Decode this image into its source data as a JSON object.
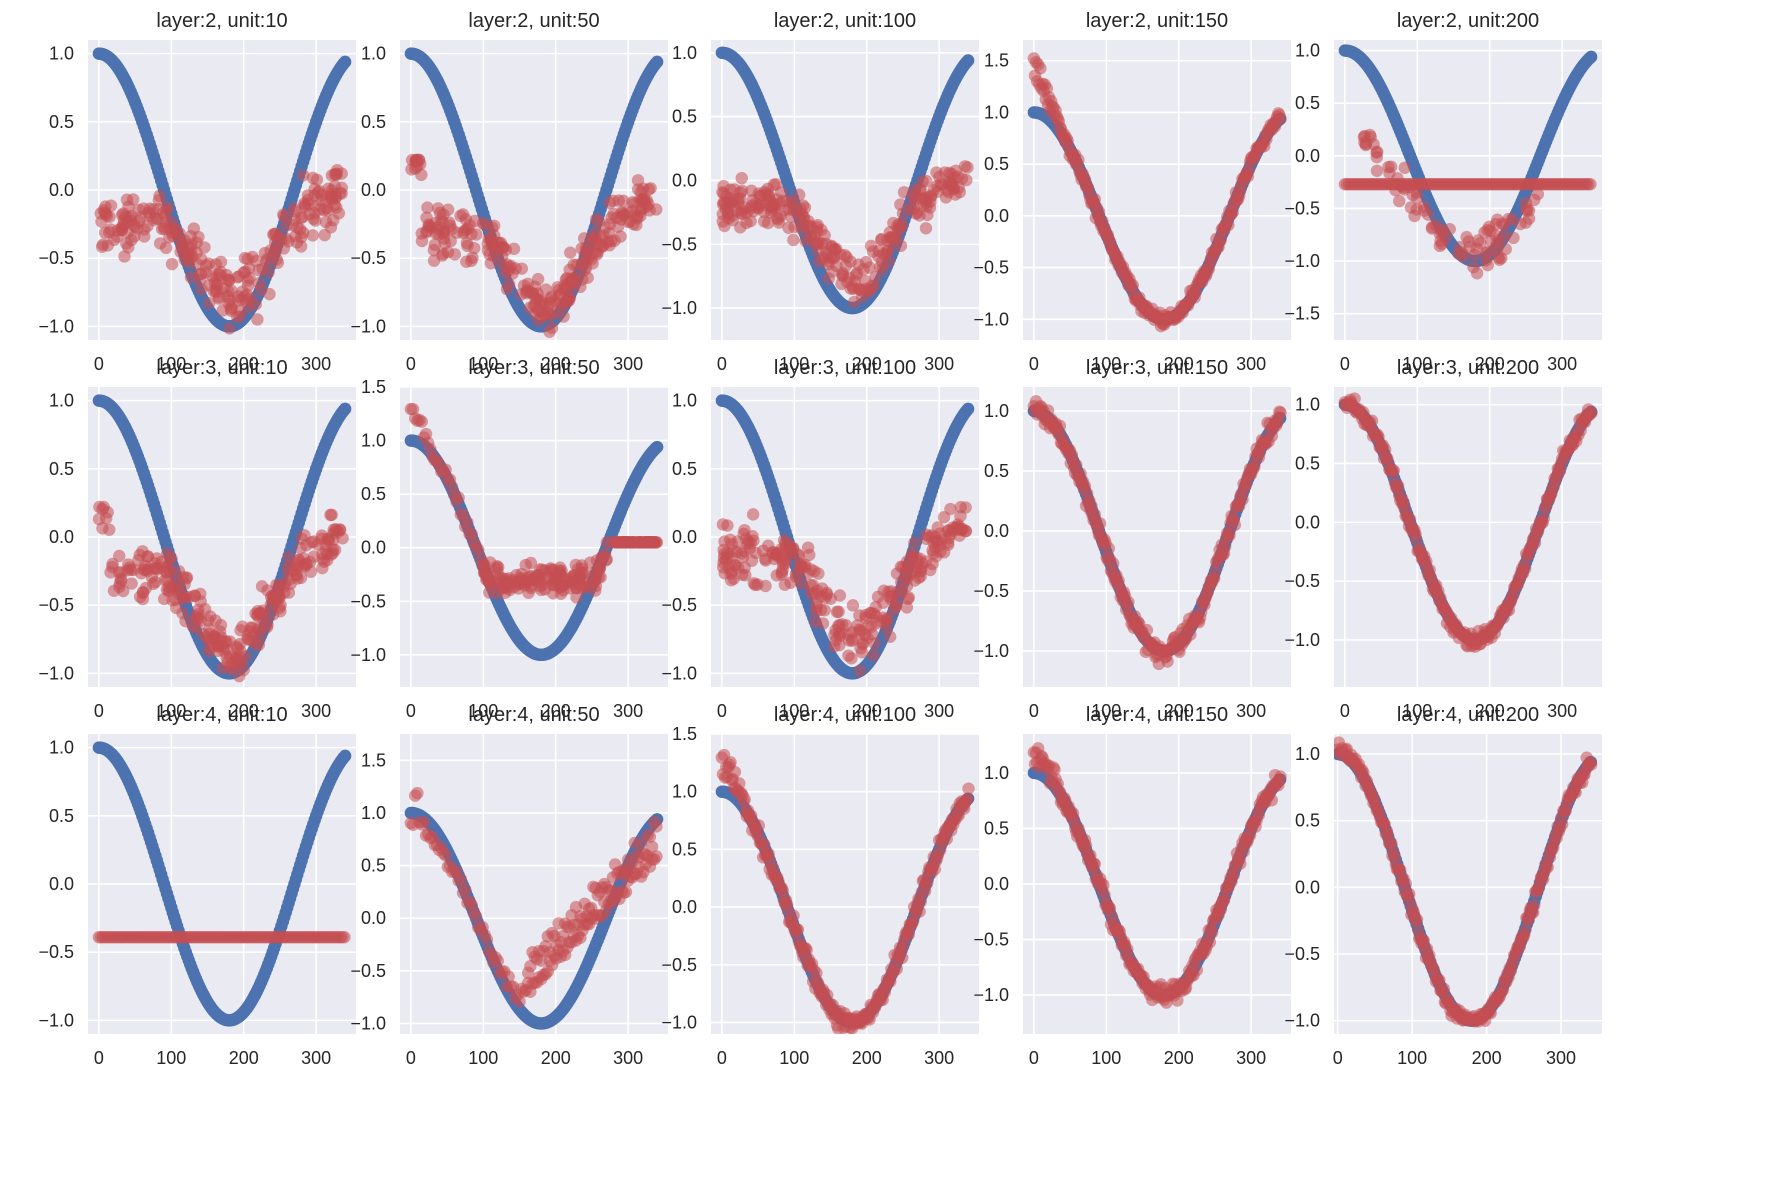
{
  "figure": {
    "type": "scatter-grid",
    "rows": 3,
    "cols": 5,
    "background": "#eaeaf2",
    "grid_color": "#ffffff",
    "reference_color": "#4c72b0",
    "prediction_color": "#c44e52",
    "prediction_alpha": 0.55
  },
  "chart_data": [
    {
      "type": "scatter",
      "title": "layer:2, unit:10",
      "xlim": [
        -15,
        355
      ],
      "ylim": [
        -1.1,
        1.1
      ],
      "xticks": [
        0,
        100,
        200,
        300
      ],
      "yticks": [
        1.0,
        0.5,
        0.0,
        -0.5,
        -1.0
      ],
      "ytick_labels": [
        "1.0",
        "0.5",
        "0.0",
        "−0.5",
        "−1.0"
      ],
      "pattern": "scatter_cloud",
      "params": {
        "base": -0.25,
        "spread": 0.35,
        "dip": 0.55
      },
      "series": [
        {
          "role": "reference",
          "shape": "cos(x)",
          "x_range": [
            0,
            340
          ]
        },
        {
          "role": "prediction"
        }
      ]
    },
    {
      "type": "scatter",
      "title": "layer:2, unit:50",
      "xlim": [
        -15,
        355
      ],
      "ylim": [
        -1.1,
        1.1
      ],
      "xticks": [
        0,
        100,
        200,
        300
      ],
      "yticks": [
        1.0,
        0.5,
        0.0,
        -0.5,
        -1.0
      ],
      "ytick_labels": [
        "1.0",
        "0.5",
        "0.0",
        "−0.5",
        "−1.0"
      ],
      "pattern": "scatter_cloud",
      "params": {
        "base": -0.3,
        "spread": 0.3,
        "dip": 0.55,
        "start": 0.35
      },
      "series": [
        {
          "role": "reference",
          "shape": "cos(x)",
          "x_range": [
            0,
            340
          ]
        },
        {
          "role": "prediction"
        }
      ]
    },
    {
      "type": "scatter",
      "title": "layer:2, unit:100",
      "xlim": [
        -15,
        355
      ],
      "ylim": [
        -1.25,
        1.1
      ],
      "xticks": [
        0,
        100,
        200,
        300
      ],
      "yticks": [
        1.0,
        0.5,
        0.0,
        -0.5,
        -1.0
      ],
      "ytick_labels": [
        "1.0",
        "0.5",
        "0.0",
        "−0.5",
        "−1.0"
      ],
      "pattern": "scatter_cloud",
      "params": {
        "base": -0.2,
        "spread": 0.3,
        "dip": 0.6
      },
      "series": [
        {
          "role": "reference",
          "shape": "cos(x)",
          "x_range": [
            0,
            340
          ]
        },
        {
          "role": "prediction"
        }
      ]
    },
    {
      "type": "scatter",
      "title": "layer:2, unit:150",
      "xlim": [
        -15,
        355
      ],
      "ylim": [
        -1.2,
        1.7
      ],
      "xticks": [
        0,
        100,
        200,
        300
      ],
      "yticks": [
        1.5,
        1.0,
        0.5,
        0.0,
        -0.5,
        -1.0
      ],
      "ytick_labels": [
        "1.5",
        "1.0",
        "0.5",
        "0.0",
        "−0.5",
        "−1.0"
      ],
      "pattern": "tight_fit",
      "params": {
        "noise": 0.07,
        "start_boost": 0.5
      },
      "series": [
        {
          "role": "reference",
          "shape": "cos(x)",
          "x_range": [
            0,
            340
          ]
        },
        {
          "role": "prediction"
        }
      ]
    },
    {
      "type": "scatter",
      "title": "layer:2, unit:200",
      "xlim": [
        -15,
        355
      ],
      "ylim": [
        -1.75,
        1.1
      ],
      "xticks": [
        0,
        100,
        200,
        300
      ],
      "yticks": [
        1.0,
        0.5,
        0.0,
        -0.5,
        -1.0,
        -1.5
      ],
      "ytick_labels": [
        "1.0",
        "0.5",
        "0.0",
        "−0.5",
        "−1.0",
        "−1.5"
      ],
      "pattern": "flat_plus_dip",
      "params": {
        "flat": -0.27
      },
      "series": [
        {
          "role": "reference",
          "shape": "cos(x)",
          "x_range": [
            0,
            340
          ]
        },
        {
          "role": "prediction"
        }
      ]
    },
    {
      "type": "scatter",
      "title": "layer:3, unit:10",
      "xlim": [
        -15,
        355
      ],
      "ylim": [
        -1.1,
        1.1
      ],
      "xticks": [
        0,
        100,
        200,
        300
      ],
      "yticks": [
        1.0,
        0.5,
        0.0,
        -0.5,
        -1.0
      ],
      "ytick_labels": [
        "1.0",
        "0.5",
        "0.0",
        "−0.5",
        "−1.0"
      ],
      "pattern": "scatter_cloud",
      "params": {
        "base": -0.25,
        "spread": 0.3,
        "dip": 0.6,
        "start": 0.35
      },
      "series": [
        {
          "role": "reference",
          "shape": "cos(x)",
          "x_range": [
            0,
            340
          ]
        },
        {
          "role": "prediction"
        }
      ]
    },
    {
      "type": "scatter",
      "title": "layer:3, unit:50",
      "xlim": [
        -15,
        355
      ],
      "ylim": [
        -1.3,
        1.5
      ],
      "xticks": [
        0,
        100,
        200,
        300
      ],
      "yticks": [
        1.5,
        1.0,
        0.5,
        0.0,
        -0.5,
        -1.0
      ],
      "ytick_labels": [
        "1.5",
        "1.0",
        "0.5",
        "0.0",
        "−0.5",
        "−1.0"
      ],
      "pattern": "half_fit",
      "params": {
        "floor": -0.25,
        "spread": 0.3,
        "start_boost": 0.3
      },
      "series": [
        {
          "role": "reference",
          "shape": "cos(x)",
          "x_range": [
            0,
            340
          ]
        },
        {
          "role": "prediction"
        }
      ]
    },
    {
      "type": "scatter",
      "title": "layer:3, unit:100",
      "xlim": [
        -15,
        355
      ],
      "ylim": [
        -1.1,
        1.1
      ],
      "xticks": [
        0,
        100,
        200,
        300
      ],
      "yticks": [
        1.0,
        0.5,
        0.0,
        -0.5,
        -1.0
      ],
      "ytick_labels": [
        "1.0",
        "0.5",
        "0.0",
        "−0.5",
        "−1.0"
      ],
      "pattern": "scatter_cloud",
      "params": {
        "base": -0.15,
        "spread": 0.35,
        "dip": 0.6
      },
      "series": [
        {
          "role": "reference",
          "shape": "cos(x)",
          "x_range": [
            0,
            340
          ]
        },
        {
          "role": "prediction"
        }
      ]
    },
    {
      "type": "scatter",
      "title": "layer:3, unit:150",
      "xlim": [
        -15,
        355
      ],
      "ylim": [
        -1.3,
        1.2
      ],
      "xticks": [
        0,
        100,
        200,
        300
      ],
      "yticks": [
        1.0,
        0.5,
        0.0,
        -0.5,
        -1.0
      ],
      "ytick_labels": [
        "1.0",
        "0.5",
        "0.0",
        "−0.5",
        "−1.0"
      ],
      "pattern": "tight_fit",
      "params": {
        "noise": 0.08,
        "start_boost": 0.0
      },
      "series": [
        {
          "role": "reference",
          "shape": "cos(x)",
          "x_range": [
            0,
            340
          ]
        },
        {
          "role": "prediction"
        }
      ]
    },
    {
      "type": "scatter",
      "title": "layer:3, unit:200",
      "xlim": [
        -15,
        355
      ],
      "ylim": [
        -1.4,
        1.15
      ],
      "xticks": [
        0,
        100,
        200,
        300
      ],
      "yticks": [
        1.0,
        0.5,
        0.0,
        -0.5,
        -1.0
      ],
      "ytick_labels": [
        "1.0",
        "0.5",
        "0.0",
        "−0.5",
        "−1.0"
      ],
      "pattern": "tight_fit",
      "params": {
        "noise": 0.06,
        "start_boost": 0.0
      },
      "series": [
        {
          "role": "reference",
          "shape": "cos(x)",
          "x_range": [
            0,
            340
          ]
        },
        {
          "role": "prediction"
        }
      ]
    },
    {
      "type": "scatter",
      "title": "layer:4, unit:10",
      "xlim": [
        -15,
        355
      ],
      "ylim": [
        -1.1,
        1.1
      ],
      "xticks": [
        0,
        100,
        200,
        300
      ],
      "yticks": [
        1.0,
        0.5,
        0.0,
        -0.5,
        -1.0
      ],
      "ytick_labels": [
        "1.0",
        "0.5",
        "0.0",
        "−0.5",
        "−1.0"
      ],
      "pattern": "flat",
      "params": {
        "flat": -0.39
      },
      "series": [
        {
          "role": "reference",
          "shape": "cos(x)",
          "x_range": [
            0,
            340
          ]
        },
        {
          "role": "prediction"
        }
      ]
    },
    {
      "type": "scatter",
      "title": "layer:4, unit:50",
      "xlim": [
        -15,
        355
      ],
      "ylim": [
        -1.1,
        1.75
      ],
      "xticks": [
        0,
        100,
        200,
        300
      ],
      "yticks": [
        1.5,
        1.0,
        0.5,
        0.0,
        -0.5,
        -1.0
      ],
      "ytick_labels": [
        "1.5",
        "1.0",
        "0.5",
        "0.0",
        "−0.5",
        "−1.0"
      ],
      "pattern": "v_shift",
      "params": {
        "min": -0.75,
        "end": 0.6,
        "start_boost": 0.6
      },
      "series": [
        {
          "role": "reference",
          "shape": "cos(x)",
          "x_range": [
            0,
            340
          ]
        },
        {
          "role": "prediction"
        }
      ]
    },
    {
      "type": "scatter",
      "title": "layer:4, unit:100",
      "xlim": [
        -15,
        355
      ],
      "ylim": [
        -1.1,
        1.5
      ],
      "xticks": [
        0,
        100,
        200,
        300
      ],
      "yticks": [
        1.5,
        1.0,
        0.5,
        0.0,
        -0.5,
        -1.0
      ],
      "ytick_labels": [
        "1.5",
        "1.0",
        "0.5",
        "0.0",
        "−0.5",
        "−1.0"
      ],
      "pattern": "tight_fit",
      "params": {
        "noise": 0.08,
        "start_boost": 0.3
      },
      "series": [
        {
          "role": "reference",
          "shape": "cos(x)",
          "x_range": [
            0,
            340
          ]
        },
        {
          "role": "prediction"
        }
      ]
    },
    {
      "type": "scatter",
      "title": "layer:4, unit:150",
      "xlim": [
        -15,
        355
      ],
      "ylim": [
        -1.35,
        1.35
      ],
      "xticks": [
        0,
        100,
        200,
        300
      ],
      "yticks": [
        1.0,
        0.5,
        0.0,
        -0.5,
        -1.0
      ],
      "ytick_labels": [
        "1.0",
        "0.5",
        "0.0",
        "−0.5",
        "−1.0"
      ],
      "pattern": "tight_fit",
      "params": {
        "noise": 0.08,
        "start_boost": 0.2
      },
      "series": [
        {
          "role": "reference",
          "shape": "cos(x)",
          "x_range": [
            0,
            340
          ]
        },
        {
          "role": "prediction"
        }
      ]
    },
    {
      "type": "scatter",
      "title": "layer:4, unit:200",
      "xlim": [
        -5,
        355
      ],
      "ylim": [
        -1.1,
        1.15
      ],
      "xticks": [
        0,
        100,
        200,
        300
      ],
      "yticks": [
        1.0,
        0.5,
        0.0,
        -0.5,
        -1.0
      ],
      "ytick_labels": [
        "1.0",
        "0.5",
        "0.0",
        "−0.5",
        "−1.0"
      ],
      "pattern": "tight_fit",
      "params": {
        "noise": 0.05,
        "start_boost": 0.05
      },
      "series": [
        {
          "role": "reference",
          "shape": "cos(x)",
          "x_range": [
            0,
            340
          ]
        },
        {
          "role": "prediction"
        }
      ]
    }
  ]
}
